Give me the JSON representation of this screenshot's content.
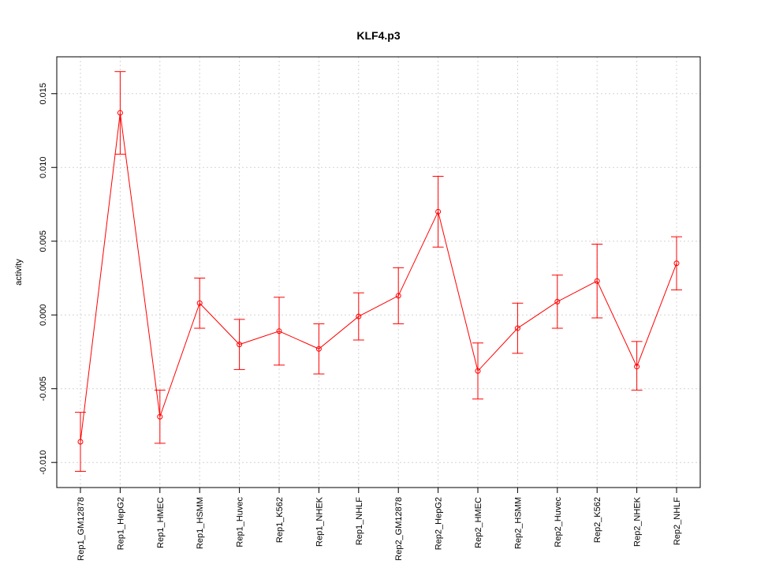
{
  "chart_data": {
    "type": "line",
    "title": "KLF4.p3",
    "xlabel": "",
    "ylabel": "activity",
    "categories": [
      "Rep1_GM12878",
      "Rep1_HepG2",
      "Rep1_HMEC",
      "Rep1_HSMM",
      "Rep1_Huvec",
      "Rep1_K562",
      "Rep1_NHEK",
      "Rep1_NHLF",
      "Rep2_GM12878",
      "Rep2_HepG2",
      "Rep2_HMEC",
      "Rep2_HSMM",
      "Rep2_Huvec",
      "Rep2_K562",
      "Rep2_NHEK",
      "Rep2_NHLF"
    ],
    "values": [
      -0.0086,
      0.0137,
      -0.0069,
      0.0008,
      -0.002,
      -0.0011,
      -0.0023,
      -0.0001,
      0.0013,
      0.007,
      -0.0038,
      -0.0009,
      0.0009,
      0.0023,
      -0.0035,
      0.0035
    ],
    "error_low": [
      -0.0106,
      0.0109,
      -0.0087,
      -0.0009,
      -0.0037,
      -0.0034,
      -0.004,
      -0.0017,
      -0.0006,
      0.0046,
      -0.0057,
      -0.0026,
      -0.0009,
      -0.0002,
      -0.0051,
      0.0017
    ],
    "error_high": [
      -0.0066,
      0.0165,
      -0.0051,
      0.0025,
      -0.0003,
      0.0012,
      -0.0006,
      0.0015,
      0.0032,
      0.0094,
      -0.0019,
      0.0008,
      0.0027,
      0.0048,
      -0.0018,
      0.0053
    ],
    "yticks": [
      -0.01,
      -0.005,
      0.0,
      0.005,
      0.01,
      0.015
    ],
    "ytick_labels": [
      "-0.010",
      "-0.005",
      "0.000",
      "0.005",
      "0.010",
      "0.015"
    ],
    "ylim": [
      -0.0117,
      0.0175
    ],
    "grid": true,
    "color": "#ff0000"
  }
}
